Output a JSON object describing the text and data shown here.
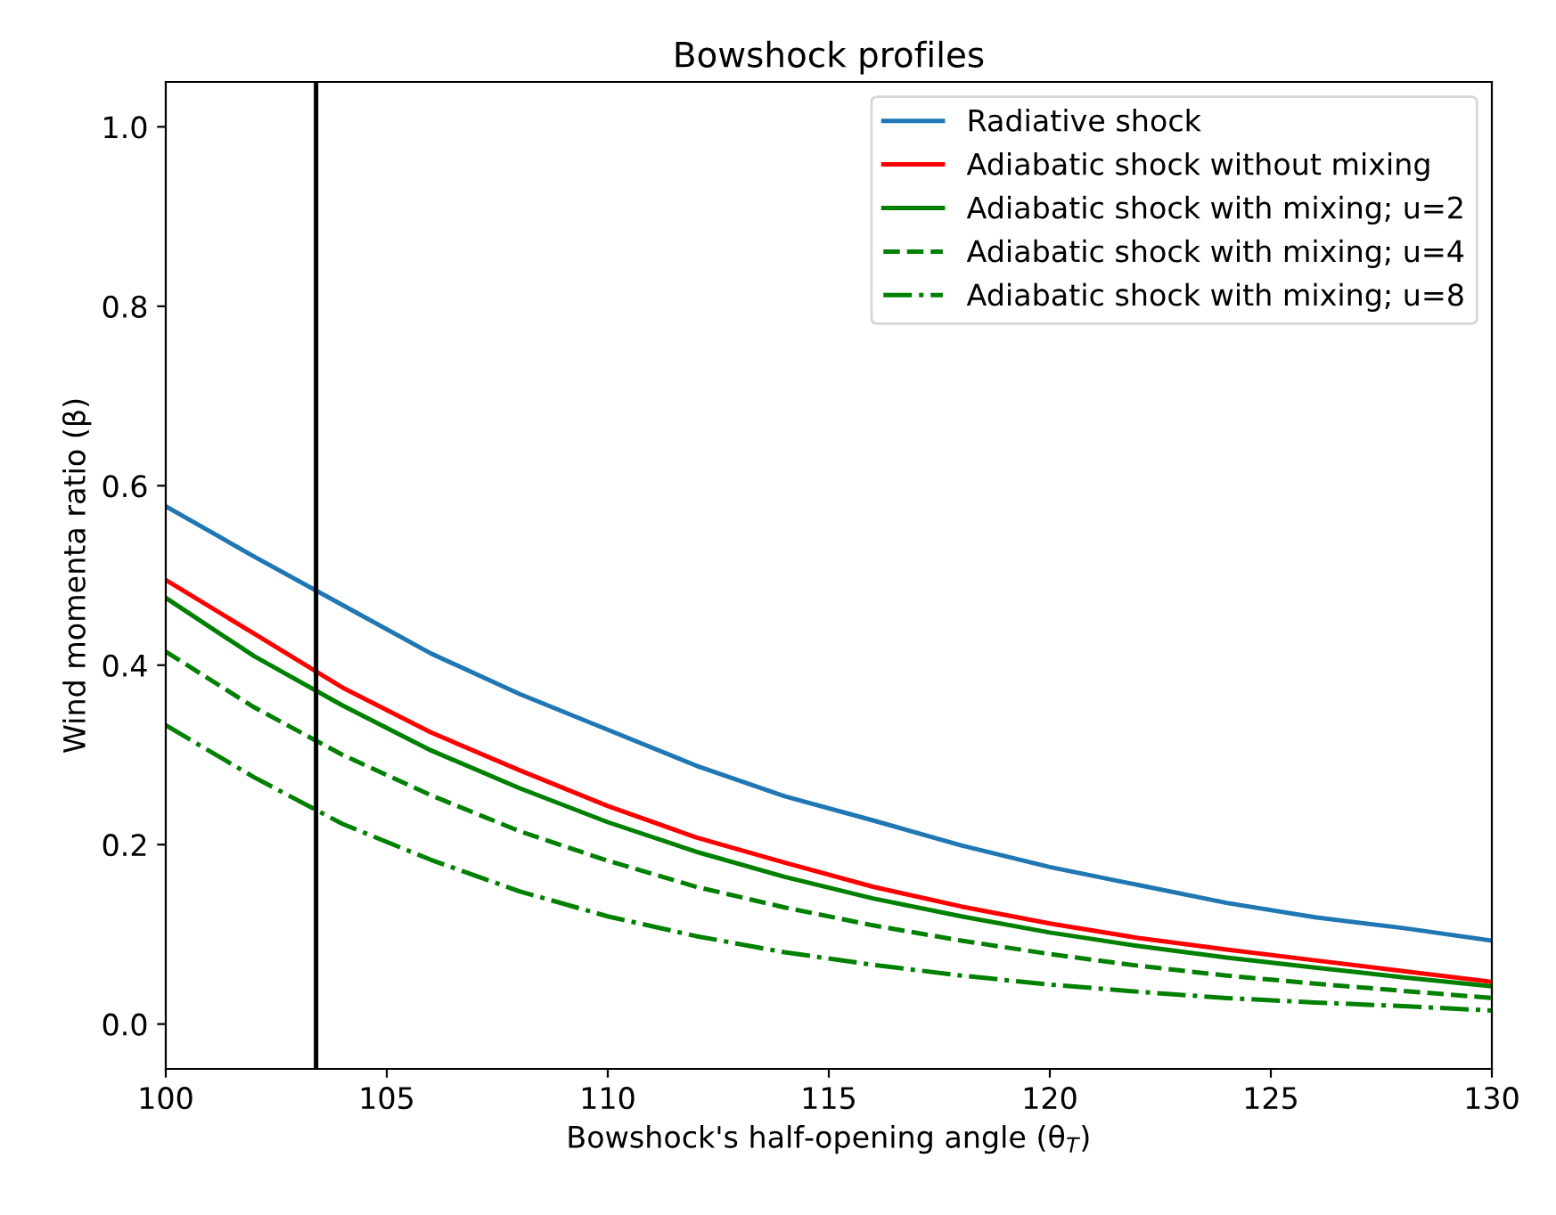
{
  "chart_data": {
    "type": "line",
    "title": "Bowshock profiles",
    "xlabel": "Bowshock's half-opening angle (θ$_{T}$)",
    "ylabel": "Wind momenta ratio (β)",
    "x": [
      100,
      102,
      104,
      106,
      108,
      110,
      112,
      114,
      116,
      118,
      120,
      122,
      124,
      126,
      128,
      130
    ],
    "series": [
      {
        "name": "Radiative shock",
        "color": "#1f77b4",
        "line_style": "solid",
        "values": [
          0.577,
          0.521,
          0.467,
          0.413,
          0.368,
          0.328,
          0.288,
          0.254,
          0.227,
          0.199,
          0.175,
          0.155,
          0.135,
          0.119,
          0.107,
          0.093
        ]
      },
      {
        "name": "Adiabatic shock without mixing",
        "color": "#ff0000",
        "line_style": "solid",
        "values": [
          0.495,
          0.435,
          0.375,
          0.325,
          0.283,
          0.243,
          0.208,
          0.18,
          0.153,
          0.131,
          0.112,
          0.096,
          0.083,
          0.071,
          0.059,
          0.047
        ]
      },
      {
        "name": "Adiabatic shock with mixing; u=2",
        "color": "#008000",
        "line_style": "solid",
        "values": [
          0.475,
          0.41,
          0.355,
          0.305,
          0.263,
          0.225,
          0.192,
          0.164,
          0.14,
          0.12,
          0.102,
          0.087,
          0.074,
          0.063,
          0.052,
          0.042
        ]
      },
      {
        "name": "Adiabatic shock with mixing; u=4",
        "color": "#008000",
        "line_style": "dashed",
        "values": [
          0.415,
          0.353,
          0.3,
          0.255,
          0.215,
          0.182,
          0.153,
          0.13,
          0.11,
          0.093,
          0.078,
          0.065,
          0.054,
          0.045,
          0.037,
          0.029
        ]
      },
      {
        "name": "Adiabatic shock with mixing; u=8",
        "color": "#008000",
        "line_style": "dashdot",
        "values": [
          0.333,
          0.275,
          0.223,
          0.183,
          0.148,
          0.12,
          0.098,
          0.08,
          0.066,
          0.054,
          0.044,
          0.036,
          0.029,
          0.024,
          0.02,
          0.015
        ]
      }
    ],
    "ref_lines": [
      {
        "axis": "x",
        "value": 103.4,
        "color": "#000000",
        "line_style": "solid"
      }
    ],
    "xlim": [
      100,
      130
    ],
    "xticks": [
      100,
      105,
      110,
      115,
      120,
      125,
      130
    ],
    "ylim": [
      -0.05,
      1.05
    ],
    "yticks": [
      {
        "value": 0,
        "label": "0.0"
      },
      {
        "value": 0.2,
        "label": "0.2"
      },
      {
        "value": 0.4,
        "label": "0.4"
      },
      {
        "value": 0.6,
        "label": "0.6"
      },
      {
        "value": 0.8,
        "label": "0.8"
      },
      {
        "value": 1.0,
        "label": "1.0"
      }
    ],
    "grid": false,
    "legend": "top right"
  }
}
